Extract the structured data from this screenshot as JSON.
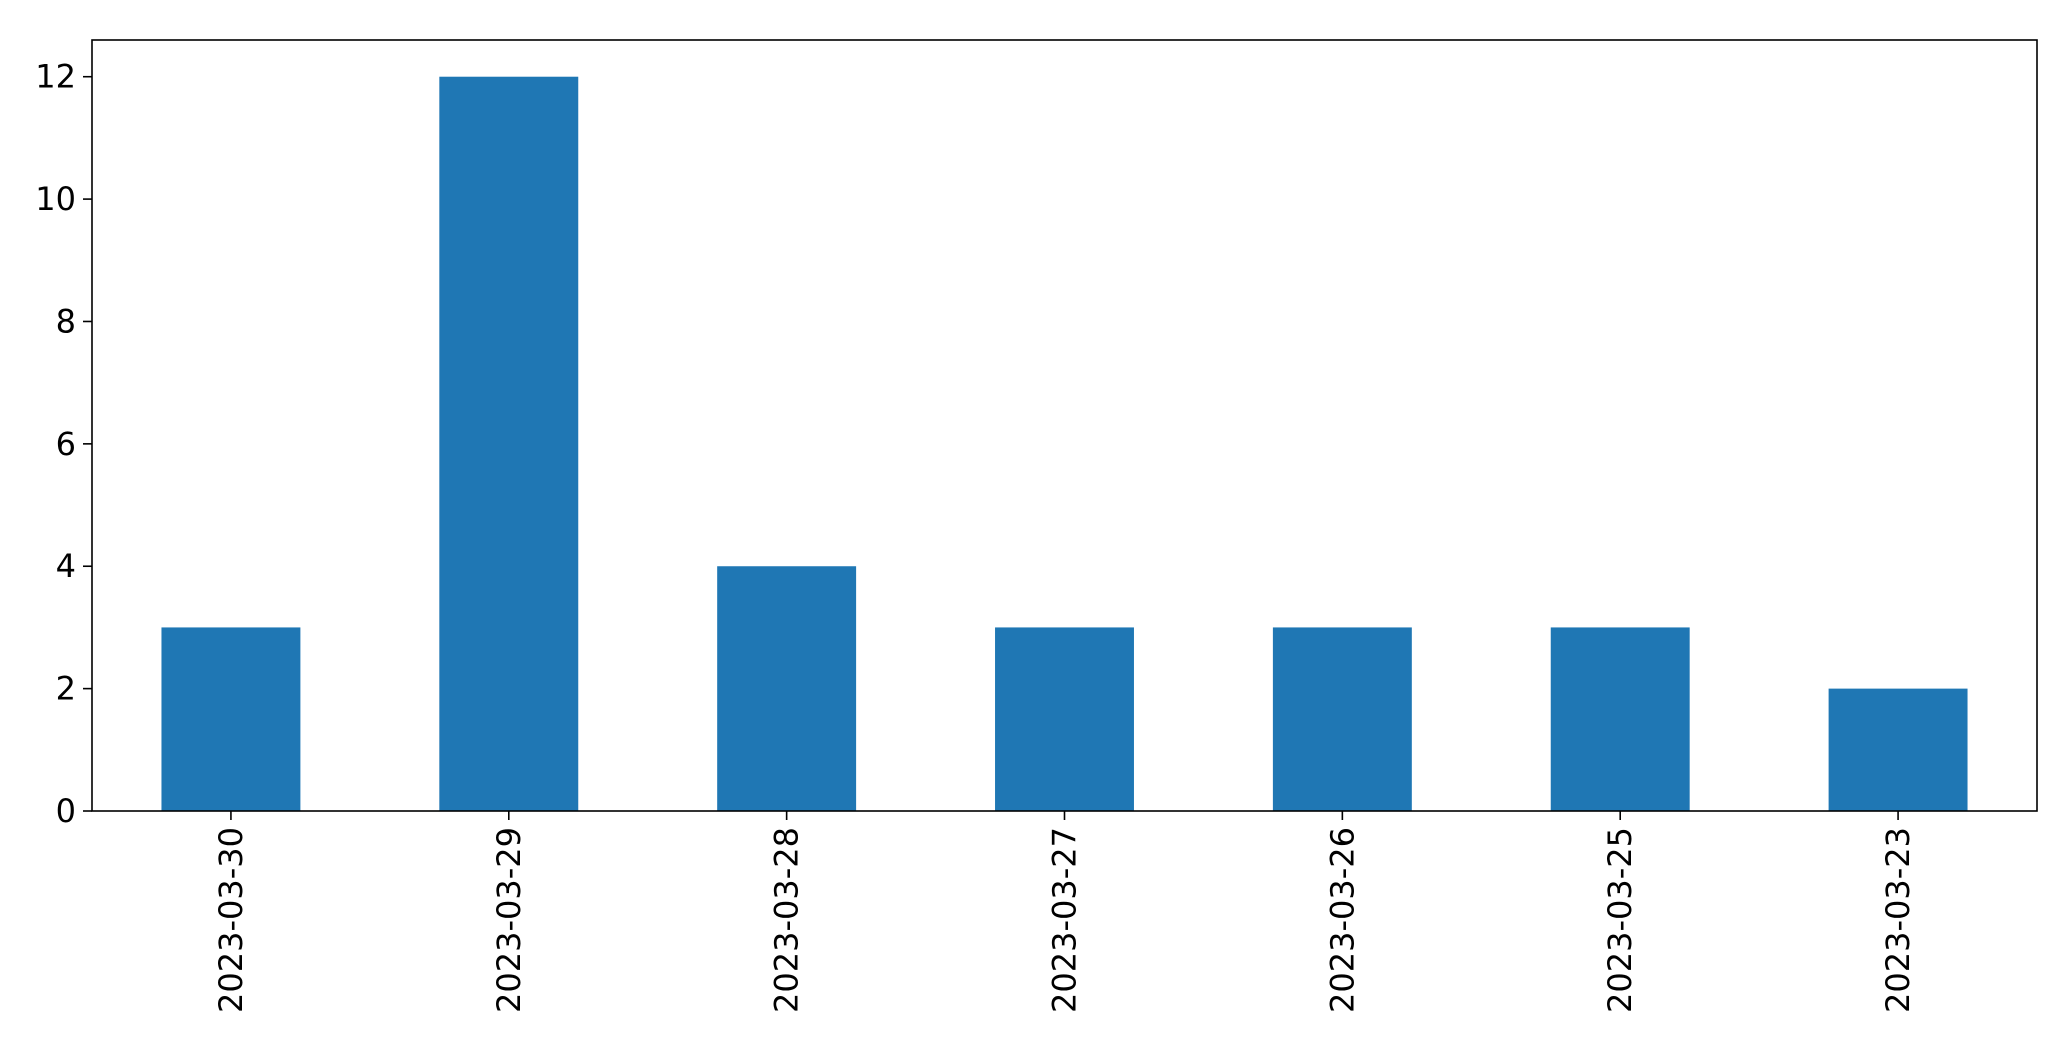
{
  "chart_data": {
    "type": "bar",
    "categories": [
      "2023-03-30",
      "2023-03-29",
      "2023-03-28",
      "2023-03-27",
      "2023-03-26",
      "2023-03-25",
      "2023-03-23"
    ],
    "values": [
      3,
      12,
      4,
      3,
      3,
      3,
      2
    ],
    "title": "",
    "xlabel": "",
    "ylabel": "",
    "ylim": [
      0,
      12.6
    ],
    "yticks": [
      0,
      2,
      4,
      6,
      8,
      10,
      12
    ],
    "grid": false,
    "colors": {
      "bar": "#1f77b4",
      "axis": "#000000"
    }
  }
}
